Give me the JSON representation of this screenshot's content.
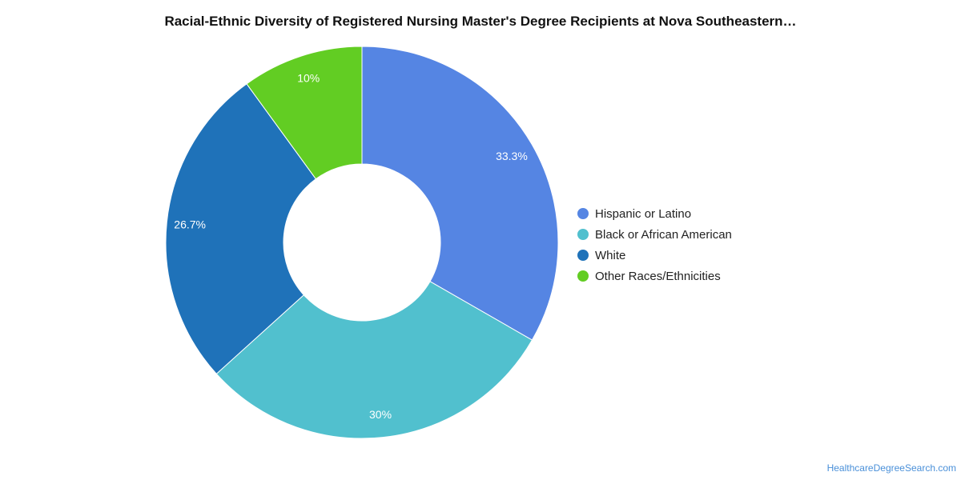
{
  "chart_data": {
    "type": "pie",
    "title": "Racial-Ethnic Diversity of Registered Nursing Master's Degree Recipients at Nova Southeastern…",
    "donut": true,
    "categories": [
      "Hispanic or Latino",
      "Black or African American",
      "White",
      "Other Races/Ethnicities"
    ],
    "values": [
      33.3,
      30,
      26.7,
      10
    ],
    "labels": [
      "33.3%",
      "30%",
      "26.7%",
      "10%"
    ],
    "colors": [
      "#5585e3",
      "#51c0ce",
      "#1f72b9",
      "#62cd23"
    ],
    "legend_position": "right"
  },
  "source": "HealthcareDegreeSearch.com"
}
